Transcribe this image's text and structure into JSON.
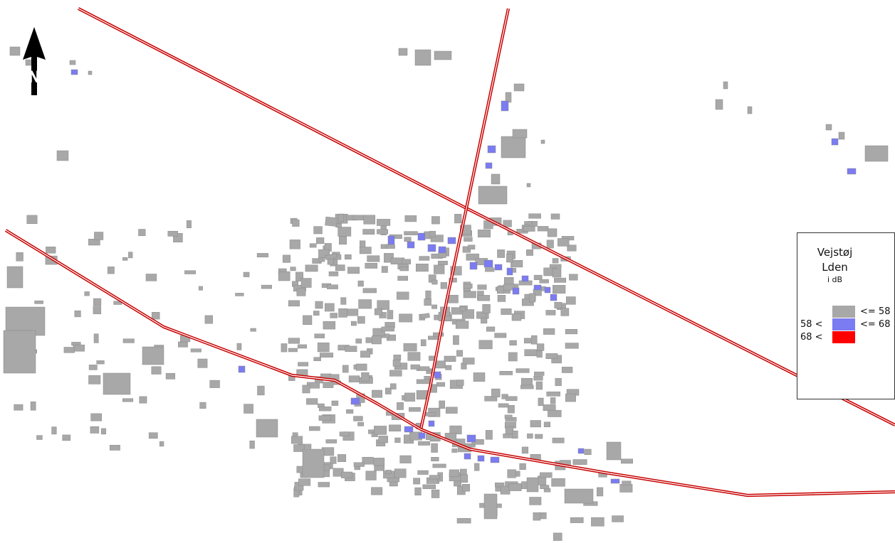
{
  "map": {
    "background": "#ffffff",
    "road_color": "#c80000",
    "building_default_color": "#a8a8a8",
    "building_mid_color": "#7b7bf2",
    "building_high_color": "#ff0000"
  },
  "north_arrow": {
    "letter": "N",
    "icon": "north-arrow-icon"
  },
  "legend": {
    "title": "Vejstøj",
    "metric": "Lden",
    "unit": "i dB",
    "classes": [
      {
        "left_label": "",
        "right_label": "<= 58",
        "color": "#a8a8a8"
      },
      {
        "left_label": "58 <",
        "right_label": "<= 68",
        "color": "#7b7bf2"
      },
      {
        "left_label": "68 <",
        "right_label": "",
        "color": "#ff0000"
      }
    ]
  }
}
